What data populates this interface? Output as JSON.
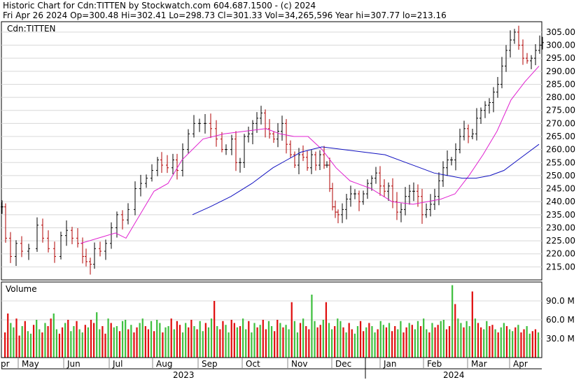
{
  "header": {
    "line1": "Historic Chart for Cdn:TITTEN by Stockwatch.com 604.687.1500 - (c) 2024",
    "line2": "Fri Apr 26 2024   Op=300.48  Hi=302.41  Lo=298.73  Cl=301.33  Vol=34,265,596  Year hi=307.77  lo=213.16"
  },
  "chart_data": {
    "type": "ohlc",
    "symbol_label": "Cdn:TITTEN",
    "price_axis": {
      "ylim": [
        210,
        309
      ],
      "ticks": [
        "305.00",
        "300.00",
        "295.00",
        "290.00",
        "285.00",
        "280.00",
        "275.00",
        "270.00",
        "265.00",
        "260.00",
        "255.00",
        "250.00",
        "245.00",
        "240.00",
        "235.00",
        "230.00",
        "225.00",
        "220.00",
        "215.00"
      ],
      "grid": true
    },
    "volume_panel": {
      "label": "Volume",
      "ylim": [
        0,
        120
      ],
      "unit": "M",
      "ticks": [
        "90.0 M",
        "60.0 M",
        "30.0 M"
      ]
    },
    "x_axis": {
      "month_labels": [
        "pr",
        "May",
        "Jun",
        "Jul",
        "Aug",
        "Sep",
        "Oct",
        "Nov",
        "Dec",
        "Jan",
        "Feb",
        "Mar",
        "Apr"
      ],
      "year_labels": [
        "2023",
        "2024"
      ]
    },
    "series": {
      "close": {
        "points": [
          [
            0,
            238
          ],
          [
            5,
            226
          ],
          [
            12,
            219
          ],
          [
            20,
            224
          ],
          [
            28,
            221
          ],
          [
            38,
            222
          ],
          [
            50,
            231
          ],
          [
            58,
            226
          ],
          [
            66,
            222
          ],
          [
            75,
            219
          ],
          [
            84,
            227
          ],
          [
            92,
            229
          ],
          [
            100,
            226
          ],
          [
            108,
            224
          ],
          [
            115,
            219
          ],
          [
            120,
            217
          ],
          [
            126,
            216
          ],
          [
            132,
            222
          ],
          [
            140,
            221
          ],
          [
            148,
            224
          ],
          [
            156,
            230
          ],
          [
            164,
            235
          ],
          [
            172,
            233
          ],
          [
            180,
            237
          ],
          [
            190,
            245
          ],
          [
            198,
            247
          ],
          [
            206,
            249
          ],
          [
            214,
            252
          ],
          [
            222,
            256
          ],
          [
            228,
            254
          ],
          [
            236,
            253
          ],
          [
            244,
            256
          ],
          [
            250,
            252
          ],
          [
            258,
            260
          ],
          [
            266,
            266
          ],
          [
            274,
            270
          ],
          [
            282,
            270
          ],
          [
            290,
            270
          ],
          [
            298,
            268
          ],
          [
            306,
            264
          ],
          [
            314,
            260
          ],
          [
            320,
            260
          ],
          [
            328,
            264
          ],
          [
            334,
            255
          ],
          [
            340,
            255
          ],
          [
            346,
            265
          ],
          [
            352,
            266
          ],
          [
            358,
            270
          ],
          [
            364,
            272
          ],
          [
            370,
            274
          ],
          [
            376,
            268
          ],
          [
            382,
            266
          ],
          [
            388,
            264
          ],
          [
            394,
            267
          ],
          [
            400,
            270
          ],
          [
            406,
            262
          ],
          [
            412,
            258
          ],
          [
            418,
            254
          ],
          [
            424,
            258
          ],
          [
            430,
            257
          ],
          [
            436,
            253
          ],
          [
            442,
            258
          ],
          [
            448,
            254
          ],
          [
            454,
            258
          ],
          [
            460,
            254
          ],
          [
            464,
            254
          ],
          [
            468,
            245
          ],
          [
            472,
            238
          ],
          [
            476,
            236
          ],
          [
            480,
            235
          ],
          [
            486,
            237
          ],
          [
            492,
            241
          ],
          [
            498,
            243
          ],
          [
            504,
            243
          ],
          [
            510,
            240
          ],
          [
            516,
            243
          ],
          [
            522,
            247
          ],
          [
            528,
            249
          ],
          [
            534,
            251
          ],
          [
            540,
            246
          ],
          [
            546,
            244
          ],
          [
            552,
            246
          ],
          [
            558,
            240
          ],
          [
            564,
            236
          ],
          [
            570,
            237
          ],
          [
            576,
            242
          ],
          [
            582,
            244
          ],
          [
            588,
            244
          ],
          [
            594,
            242
          ],
          [
            600,
            235
          ],
          [
            606,
            237
          ],
          [
            612,
            239
          ],
          [
            618,
            242
          ],
          [
            624,
            248
          ],
          [
            630,
            253
          ],
          [
            636,
            256
          ],
          [
            642,
            256
          ],
          [
            648,
            260
          ],
          [
            654,
            265
          ],
          [
            660,
            268
          ],
          [
            666,
            265
          ],
          [
            672,
            266
          ],
          [
            678,
            272
          ],
          [
            684,
            275
          ],
          [
            690,
            277
          ],
          [
            696,
            278
          ],
          [
            702,
            282
          ],
          [
            708,
            285
          ],
          [
            714,
            292
          ],
          [
            720,
            298
          ],
          [
            726,
            302
          ],
          [
            732,
            305
          ],
          [
            738,
            300
          ],
          [
            744,
            295
          ],
          [
            750,
            294
          ],
          [
            756,
            295
          ],
          [
            762,
            298
          ],
          [
            768,
            300
          ],
          [
            772,
            301
          ]
        ]
      },
      "ma_short": {
        "points": [
          [
            115,
            224
          ],
          [
            140,
            226
          ],
          [
            165,
            228
          ],
          [
            180,
            226
          ],
          [
            200,
            235
          ],
          [
            220,
            244
          ],
          [
            240,
            247
          ],
          [
            260,
            256
          ],
          [
            290,
            264
          ],
          [
            320,
            266
          ],
          [
            350,
            267
          ],
          [
            380,
            268
          ],
          [
            400,
            266
          ],
          [
            420,
            265
          ],
          [
            440,
            265
          ],
          [
            460,
            260
          ],
          [
            480,
            253
          ],
          [
            500,
            248
          ],
          [
            530,
            245
          ],
          [
            560,
            240
          ],
          [
            590,
            239
          ],
          [
            610,
            240
          ],
          [
            630,
            241
          ],
          [
            650,
            243
          ],
          [
            670,
            250
          ],
          [
            690,
            258
          ],
          [
            710,
            267
          ],
          [
            730,
            279
          ],
          [
            750,
            286
          ],
          [
            770,
            292
          ]
        ]
      },
      "ma_long": {
        "points": [
          [
            275,
            235
          ],
          [
            300,
            238
          ],
          [
            330,
            242
          ],
          [
            360,
            247
          ],
          [
            390,
            253
          ],
          [
            410,
            256
          ],
          [
            430,
            259
          ],
          [
            460,
            261
          ],
          [
            490,
            260
          ],
          [
            520,
            259
          ],
          [
            550,
            258
          ],
          [
            580,
            255
          ],
          [
            600,
            253
          ],
          [
            620,
            251
          ],
          [
            640,
            250
          ],
          [
            660,
            249
          ],
          [
            680,
            249
          ],
          [
            700,
            250
          ],
          [
            720,
            252
          ],
          [
            740,
            256
          ],
          [
            770,
            262
          ]
        ]
      }
    },
    "volume": {
      "values": [
        40,
        70,
        55,
        48,
        62,
        35,
        50,
        58,
        42,
        38,
        52,
        60,
        45,
        40,
        55,
        50,
        62,
        70,
        45,
        38,
        48,
        55,
        60,
        42,
        50,
        58,
        45,
        40,
        52,
        48,
        60,
        55,
        72,
        45,
        50,
        38,
        62,
        55,
        48,
        50,
        42,
        58,
        60,
        45,
        52,
        40,
        48,
        55,
        62,
        50,
        45,
        58,
        42,
        60,
        55,
        40,
        48,
        50,
        62,
        45,
        58,
        52,
        40,
        55,
        48,
        60,
        50,
        45,
        58,
        42,
        55,
        48,
        62,
        90,
        50,
        45,
        58,
        52,
        40,
        60,
        55,
        48,
        50,
        62,
        45,
        58,
        40,
        55,
        48,
        52,
        60,
        45,
        58,
        50,
        42,
        60,
        55,
        48,
        52,
        45,
        88,
        58,
        40,
        55,
        62,
        50,
        45,
        100,
        58,
        48,
        52,
        60,
        88,
        55,
        45,
        50,
        62,
        58,
        48,
        40,
        55,
        45,
        38,
        50,
        58,
        42,
        48,
        55,
        50,
        40,
        45,
        58,
        52,
        48,
        55,
        42,
        50,
        45,
        58,
        40,
        48,
        55,
        52,
        45,
        58,
        50,
        62,
        45,
        40,
        55,
        48,
        52,
        58,
        60,
        45,
        50,
        115,
        85,
        62,
        55,
        48,
        58,
        50,
        105,
        62,
        55,
        48,
        45,
        58,
        50,
        52,
        45,
        40,
        48,
        55,
        50,
        45,
        42,
        48,
        52,
        40,
        45,
        50,
        38,
        42,
        45,
        40
      ]
    }
  }
}
